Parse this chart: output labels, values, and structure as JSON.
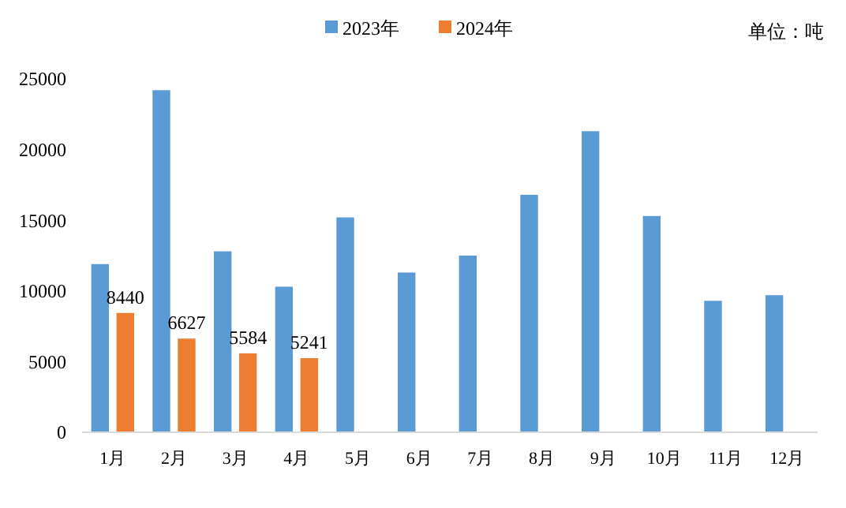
{
  "chart_data": {
    "type": "bar",
    "categories": [
      "1月",
      "2月",
      "3月",
      "4月",
      "5月",
      "6月",
      "7月",
      "8月",
      "9月",
      "10月",
      "11月",
      "12月"
    ],
    "series": [
      {
        "name": "2023年",
        "color": "#5b9bd5",
        "values": [
          11900,
          24200,
          12800,
          10300,
          15200,
          11300,
          12500,
          16800,
          21300,
          15300,
          9300,
          9700
        ]
      },
      {
        "name": "2024年",
        "color": "#ed7d31",
        "values": [
          8440,
          6627,
          5584,
          5241,
          null,
          null,
          null,
          null,
          null,
          null,
          null,
          null
        ],
        "value_labels": [
          "8440",
          "6627",
          "5584",
          "5241",
          null,
          null,
          null,
          null,
          null,
          null,
          null,
          null
        ]
      }
    ],
    "ylim": [
      0,
      25000
    ],
    "yticks": [
      0,
      5000,
      10000,
      15000,
      20000,
      25000
    ],
    "grid": false,
    "legend": "top",
    "annotations": [
      "单位：吨"
    ]
  }
}
